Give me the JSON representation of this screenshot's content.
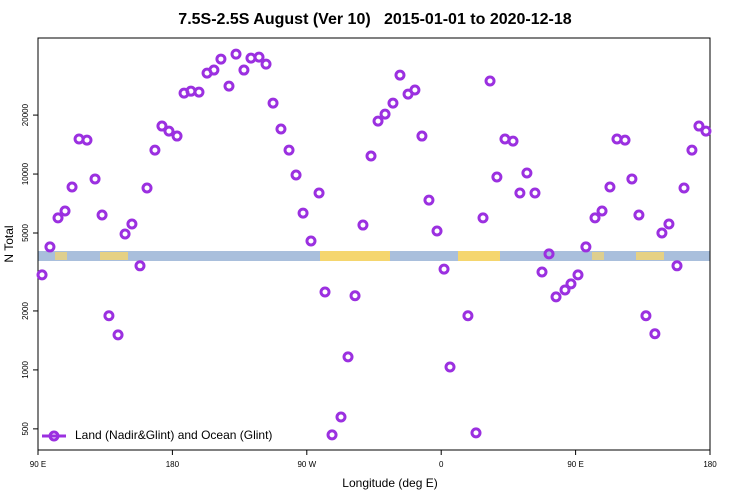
{
  "chart_data": {
    "type": "scatter",
    "title": "7.5S-2.5S August (Ver 10)   2015-01-01 to 2020-12-18",
    "x_label": "Longitude (deg E)",
    "y_label": "N Total",
    "log_y": true,
    "legend": "bottom-left",
    "xlim": [
      90,
      540
    ],
    "ylim": [
      390,
      49500
    ],
    "xticks": [
      {
        "value": 90,
        "label": "90 E"
      },
      180,
      {
        "value": 270,
        "label": "90 W"
      },
      {
        "value": 360,
        "label": "0"
      },
      {
        "value": 450,
        "label": "90 E"
      },
      {
        "value": 540,
        "label": "180"
      }
    ],
    "yticks": [
      500,
      1000,
      2000,
      5000,
      10000,
      20000
    ],
    "series": [
      {
        "name": "Land (Nadir&Glint) and Ocean (Glint)",
        "color": "#9b30e0",
        "x": [
          92.7,
          98.0,
          103.4,
          108.1,
          112.8,
          117.5,
          122.8,
          128.2,
          132.9,
          137.5,
          143.6,
          148.3,
          152.9,
          158.3,
          163.0,
          168.3,
          173.0,
          177.7,
          183.1,
          187.8,
          192.4,
          197.8,
          203.2,
          207.8,
          212.5,
          217.9,
          222.6,
          227.9,
          232.6,
          238.0,
          242.7,
          247.4,
          252.7,
          258.1,
          262.8,
          267.5,
          272.8,
          278.2,
          282.2,
          286.9,
          292.9,
          297.6,
          302.3,
          307.6,
          313.0,
          317.7,
          322.4,
          327.7,
          332.4,
          337.8,
          342.4,
          347.1,
          351.8,
          357.2,
          361.9,
          365.9,
          377.9,
          383.3,
          388.0,
          392.7,
          397.3,
          402.7,
          408.1,
          412.7,
          417.4,
          422.8,
          427.5,
          432.2,
          436.9,
          442.9,
          446.9,
          451.6,
          456.9,
          463.0,
          467.7,
          473.0,
          477.7,
          483.1,
          487.7,
          492.4,
          497.1,
          503.1,
          507.8,
          512.5,
          517.9,
          522.6,
          527.9,
          532.6,
          537.3
        ],
        "values": [
          3055,
          4245,
          5970,
          6475,
          8590,
          15100,
          14900,
          9440,
          6180,
          1890,
          1510,
          4940,
          5560,
          3400,
          8490,
          13250,
          17580,
          16560,
          15630,
          25880,
          26490,
          26200,
          32740,
          33960,
          38640,
          28120,
          40930,
          33960,
          39080,
          39540,
          36390,
          23010,
          16980,
          13250,
          9890,
          6320,
          4550,
          8000,
          2500,
          466,
          575,
          1165,
          2390,
          5490,
          12360,
          18620,
          20230,
          23010,
          31990,
          25590,
          26850,
          15630,
          7360,
          5120,
          3270,
          1035,
          1890,
          477,
          5970,
          29850,
          9660,
          15100,
          14720,
          8000,
          10120,
          8000,
          3160,
          3910,
          2360,
          2560,
          2750,
          3055,
          4245,
          5970,
          6475,
          8590,
          15100,
          14900,
          9440,
          6180,
          1890,
          1530,
          5000,
          5560,
          3400,
          8490,
          13250,
          17580,
          16560
        ]
      }
    ]
  }
}
